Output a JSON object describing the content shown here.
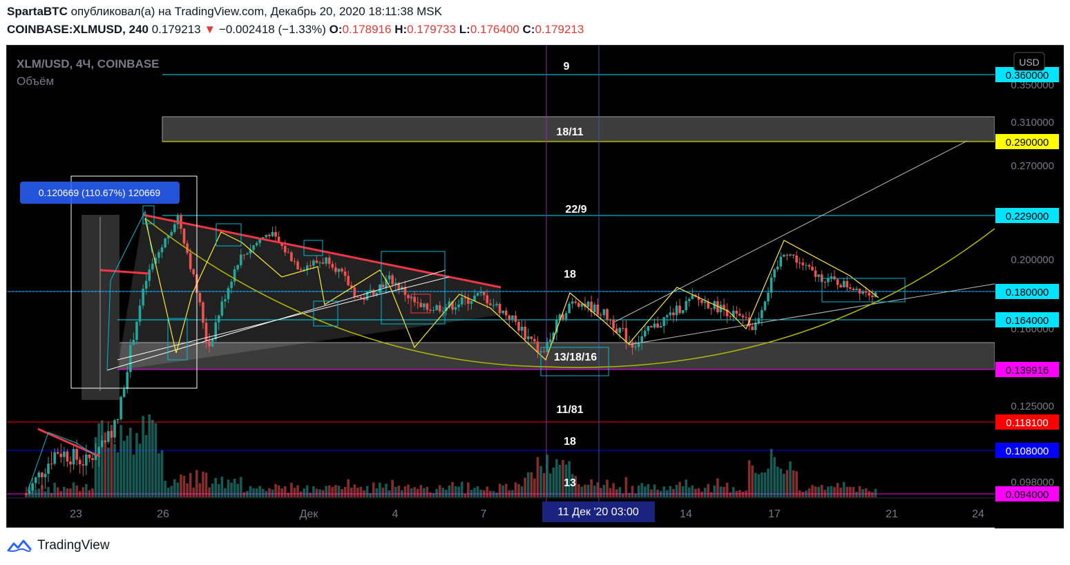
{
  "header": {
    "author": "SpartaBTC",
    "published_text": " опубликовал(а) на TradingView.com, Декабрь 20, 2020 18:11:38 MSK",
    "symbol": "COINBASE:XLMUSD, 240",
    "last": "0.179213",
    "change_arrow": "▼",
    "change": "−0.002418 (−1.33%)",
    "o_label": "O:",
    "o": "0.178916",
    "h_label": "H:",
    "h": "0.179733",
    "l_label": "L:",
    "l": "0.176400",
    "c_label": "C:",
    "c": "0.179213"
  },
  "chart": {
    "pair_label": "XLM/USD, 4Ч, COINBASE",
    "volume_label": "Объём",
    "currency_button": "USD",
    "measure_label": "0.120669 (110.67%) 120669",
    "time_badge": "11 Дек '20   03:00",
    "annotations": [
      "9",
      "18/11",
      "22/9",
      "18",
      "13/18/16",
      "11/81",
      "18",
      "13"
    ]
  },
  "chart_data": {
    "type": "candlestick",
    "symbol": "XLM/USD",
    "interval": "4Ч",
    "exchange": "COINBASE",
    "ylim": [
      0.094,
      0.36
    ],
    "price_axis_ticks": [
      "0.350000",
      "0.310000",
      "0.270000",
      "0.200000",
      "0.160000",
      "0.125000",
      "0.108000",
      "0.098000"
    ],
    "date_axis_ticks": [
      "23",
      "26",
      "Дек",
      "4",
      "7",
      "11 Дек '20   03:00",
      "14",
      "17",
      "21",
      "24"
    ],
    "horizontal_levels": [
      {
        "price": "0.360000",
        "color": "#00e5ff"
      },
      {
        "price": "0.290000",
        "color": "#ffff00"
      },
      {
        "price": "0.229000",
        "color": "#00e5ff"
      },
      {
        "price": "0.180000",
        "color": "#00e5ff"
      },
      {
        "price": "0.164000",
        "color": "#00e5ff"
      },
      {
        "price": "0.139916",
        "color": "#ff00ff"
      },
      {
        "price": "0.118100",
        "color": "#ff0000"
      },
      {
        "price": "0.108000",
        "color": "#0000ff"
      },
      {
        "price": "0.094000",
        "color": "#ff00ff"
      }
    ],
    "last_price": 0.179213,
    "measure": {
      "change": 0.120669,
      "percent": 110.67
    },
    "approx_path": [
      {
        "t": "Nov 21",
        "price": 0.094
      },
      {
        "t": "Nov 22",
        "price": 0.108
      },
      {
        "t": "Nov 23",
        "price": 0.104
      },
      {
        "t": "Nov 24",
        "price": 0.118
      },
      {
        "t": "Nov 24",
        "price": 0.19
      },
      {
        "t": "Nov 25",
        "price": 0.229
      },
      {
        "t": "Nov 26",
        "price": 0.15
      },
      {
        "t": "Nov 27",
        "price": 0.2
      },
      {
        "t": "Nov 28",
        "price": 0.218
      },
      {
        "t": "Nov 30",
        "price": 0.195
      },
      {
        "t": "Dec 1",
        "price": 0.2
      },
      {
        "t": "Dec 2",
        "price": 0.175
      },
      {
        "t": "Dec 3",
        "price": 0.188
      },
      {
        "t": "Dec 4",
        "price": 0.17
      },
      {
        "t": "Dec 5",
        "price": 0.172
      },
      {
        "t": "Dec 6",
        "price": 0.178
      },
      {
        "t": "Dec 8",
        "price": 0.165
      },
      {
        "t": "Dec 9",
        "price": 0.147
      },
      {
        "t": "Dec 10",
        "price": 0.176
      },
      {
        "t": "Dec 11",
        "price": 0.168
      },
      {
        "t": "Dec 12",
        "price": 0.152
      },
      {
        "t": "Dec 13",
        "price": 0.164
      },
      {
        "t": "Dec 14",
        "price": 0.176
      },
      {
        "t": "Dec 15",
        "price": 0.17
      },
      {
        "t": "Dec 16",
        "price": 0.16
      },
      {
        "t": "Dec 17",
        "price": 0.206
      },
      {
        "t": "Dec 18",
        "price": 0.19
      },
      {
        "t": "Dec 19",
        "price": 0.184
      },
      {
        "t": "Dec 20",
        "price": 0.179
      }
    ]
  },
  "footer": {
    "brand": "TradingView"
  }
}
